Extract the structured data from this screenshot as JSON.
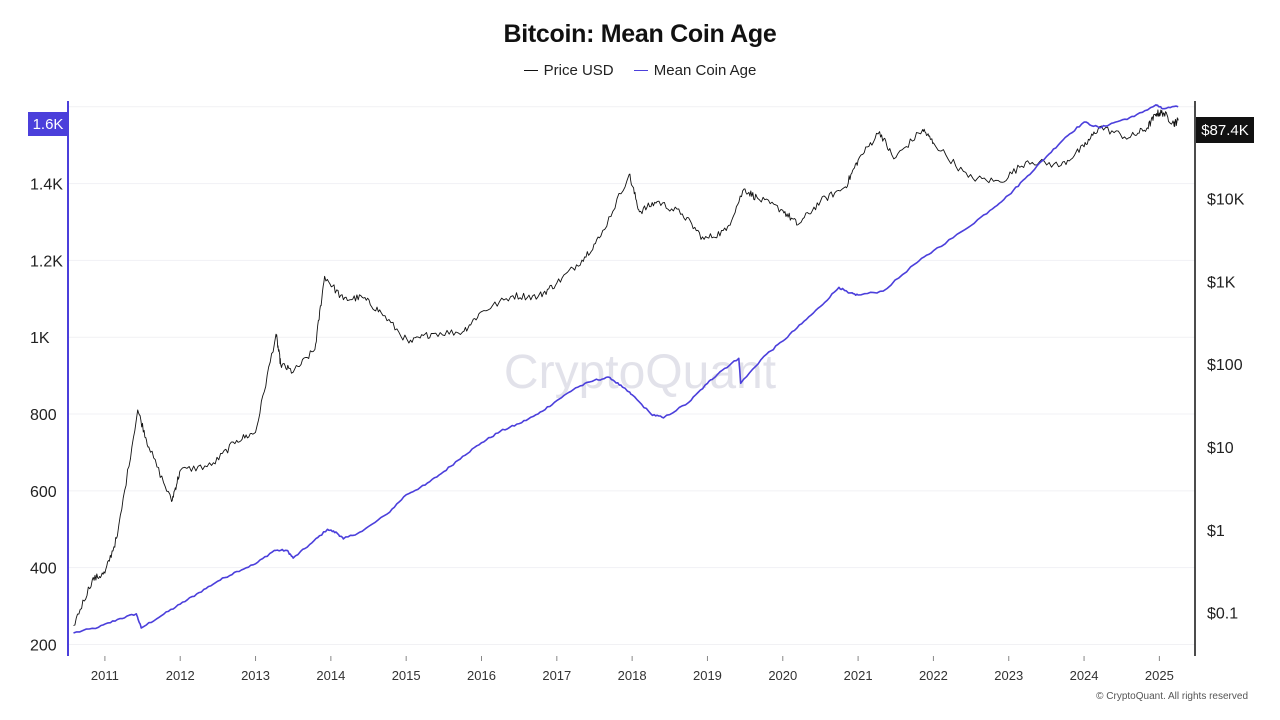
{
  "chart_data": {
    "type": "line",
    "title": "Bitcoin: Mean Coin Age",
    "legend_position": "top-center",
    "grid": true,
    "colors": {
      "price": "#111111",
      "mean_coin_age": "#4b3fdb",
      "current_price_badge": "#111111",
      "current_age_badge": "#4b3fdb"
    },
    "x_ticks": [
      "2011",
      "2012",
      "2013",
      "2014",
      "2015",
      "2016",
      "2017",
      "2018",
      "2019",
      "2020",
      "2021",
      "2022",
      "2023",
      "2024",
      "2025"
    ],
    "y_left": {
      "ticks": [
        "200",
        "400",
        "600",
        "800",
        "1K",
        "1.2K",
        "1.4K"
      ],
      "tick_values": [
        200,
        400,
        600,
        800,
        1000,
        1200,
        1400
      ],
      "range": [
        170,
        1615
      ],
      "current_label": "1.6K"
    },
    "y_right": {
      "scale": "log",
      "ticks": [
        "$0.1",
        "$1",
        "$10",
        "$100",
        "$1K",
        "$10K"
      ],
      "tick_values": [
        0.1,
        1,
        10,
        100,
        1000,
        10000
      ],
      "range": [
        0.03,
        150000
      ],
      "current_label": "$87.4K"
    },
    "series": [
      {
        "name": "Mean Coin Age",
        "axis": "left",
        "points": [
          [
            "2010-08-01",
            230
          ],
          [
            "2010-12-01",
            245
          ],
          [
            "2011-03-01",
            265
          ],
          [
            "2011-06-01",
            280
          ],
          [
            "2011-06-25",
            243
          ],
          [
            "2011-10-01",
            275
          ],
          [
            "2012-01-01",
            305
          ],
          [
            "2012-04-01",
            335
          ],
          [
            "2012-07-01",
            365
          ],
          [
            "2012-10-01",
            390
          ],
          [
            "2013-01-01",
            410
          ],
          [
            "2013-04-01",
            445
          ],
          [
            "2013-06-01",
            445
          ],
          [
            "2013-07-01",
            425
          ],
          [
            "2013-10-01",
            465
          ],
          [
            "2013-12-15",
            500
          ],
          [
            "2014-02-01",
            490
          ],
          [
            "2014-03-01",
            475
          ],
          [
            "2014-06-01",
            495
          ],
          [
            "2014-10-01",
            540
          ],
          [
            "2015-01-01",
            590
          ],
          [
            "2015-04-01",
            615
          ],
          [
            "2015-07-01",
            650
          ],
          [
            "2015-10-01",
            690
          ],
          [
            "2016-01-01",
            725
          ],
          [
            "2016-04-01",
            755
          ],
          [
            "2016-07-01",
            775
          ],
          [
            "2016-10-01",
            800
          ],
          [
            "2017-01-01",
            835
          ],
          [
            "2017-04-01",
            868
          ],
          [
            "2017-07-01",
            888
          ],
          [
            "2017-09-15",
            895
          ],
          [
            "2017-11-15",
            870
          ],
          [
            "2018-01-01",
            850
          ],
          [
            "2018-04-01",
            800
          ],
          [
            "2018-06-01",
            790
          ],
          [
            "2018-10-01",
            830
          ],
          [
            "2019-01-01",
            880
          ],
          [
            "2019-03-01",
            910
          ],
          [
            "2019-06-01",
            945
          ],
          [
            "2019-06-10",
            880
          ],
          [
            "2019-10-01",
            950
          ],
          [
            "2020-01-01",
            990
          ],
          [
            "2020-04-01",
            1035
          ],
          [
            "2020-07-01",
            1080
          ],
          [
            "2020-09-30",
            1130
          ],
          [
            "2020-11-15",
            1115
          ],
          [
            "2021-01-01",
            1110
          ],
          [
            "2021-05-01",
            1120
          ],
          [
            "2021-10-01",
            1190
          ],
          [
            "2022-01-01",
            1225
          ],
          [
            "2022-06-01",
            1280
          ],
          [
            "2022-10-01",
            1330
          ],
          [
            "2023-01-01",
            1370
          ],
          [
            "2023-04-01",
            1420
          ],
          [
            "2023-07-01",
            1470
          ],
          [
            "2023-10-01",
            1520
          ],
          [
            "2024-01-01",
            1560
          ],
          [
            "2024-03-15",
            1545
          ],
          [
            "2024-06-01",
            1560
          ],
          [
            "2024-09-01",
            1575
          ],
          [
            "2024-12-15",
            1605
          ],
          [
            "2025-01-15",
            1595
          ],
          [
            "2025-04-01",
            1600
          ]
        ]
      },
      {
        "name": "Price USD",
        "axis": "right",
        "points": [
          [
            "2010-08-01",
            0.07
          ],
          [
            "2010-11-01",
            0.25
          ],
          [
            "2011-01-01",
            0.3
          ],
          [
            "2011-03-01",
            0.85
          ],
          [
            "2011-06-08",
            28
          ],
          [
            "2011-08-01",
            10
          ],
          [
            "2011-11-20",
            2.2
          ],
          [
            "2012-01-01",
            5.2
          ],
          [
            "2012-06-01",
            6
          ],
          [
            "2012-10-01",
            12
          ],
          [
            "2013-01-01",
            15
          ],
          [
            "2013-04-09",
            230
          ],
          [
            "2013-05-01",
            100
          ],
          [
            "2013-07-01",
            80
          ],
          [
            "2013-10-15",
            150
          ],
          [
            "2013-12-01",
            1150
          ],
          [
            "2014-03-01",
            600
          ],
          [
            "2014-06-01",
            640
          ],
          [
            "2014-09-01",
            420
          ],
          [
            "2015-01-14",
            180
          ],
          [
            "2015-05-01",
            235
          ],
          [
            "2015-10-01",
            245
          ],
          [
            "2016-01-01",
            430
          ],
          [
            "2016-06-01",
            670
          ],
          [
            "2016-10-01",
            650
          ],
          [
            "2017-01-01",
            950
          ],
          [
            "2017-05-01",
            1800
          ],
          [
            "2017-08-01",
            3500
          ],
          [
            "2017-12-17",
            19500
          ],
          [
            "2018-02-06",
            6900
          ],
          [
            "2018-05-01",
            9200
          ],
          [
            "2018-09-01",
            6500
          ],
          [
            "2018-12-15",
            3200
          ],
          [
            "2019-04-01",
            4100
          ],
          [
            "2019-06-26",
            13000
          ],
          [
            "2019-09-01",
            10000
          ],
          [
            "2020-01-01",
            7200
          ],
          [
            "2020-03-13",
            4800
          ],
          [
            "2020-07-01",
            9200
          ],
          [
            "2020-11-01",
            13800
          ],
          [
            "2021-01-01",
            29000
          ],
          [
            "2021-04-14",
            64000
          ],
          [
            "2021-06-22",
            30000
          ],
          [
            "2021-11-10",
            68000
          ],
          [
            "2022-01-01",
            47000
          ],
          [
            "2022-06-18",
            18000
          ],
          [
            "2022-11-21",
            15800
          ],
          [
            "2023-04-01",
            28500
          ],
          [
            "2023-09-11",
            25000
          ],
          [
            "2024-01-01",
            42000
          ],
          [
            "2024-03-14",
            73000
          ],
          [
            "2024-08-05",
            54000
          ],
          [
            "2024-11-01",
            70000
          ],
          [
            "2024-12-17",
            106000
          ],
          [
            "2025-01-20",
            108000
          ],
          [
            "2025-03-10",
            80000
          ],
          [
            "2025-04-01",
            87400
          ]
        ]
      }
    ]
  },
  "page": {
    "watermark": "CryptoQuant",
    "copyright": "© CryptoQuant. All rights reserved"
  }
}
